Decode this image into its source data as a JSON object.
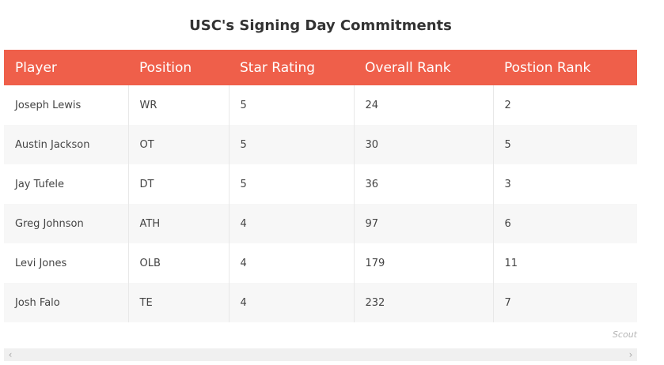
{
  "title": "USC's Signing Day Commitments",
  "table": {
    "headers": [
      "Player",
      "Position",
      "Star Rating",
      "Overall Rank",
      "Postion Rank"
    ],
    "rows": [
      [
        "Joseph Lewis",
        "WR",
        "5",
        "24",
        "2"
      ],
      [
        "Austin Jackson",
        "OT",
        "5",
        "30",
        "5"
      ],
      [
        "Jay Tufele",
        "DT",
        "5",
        "36",
        "3"
      ],
      [
        "Greg Johnson",
        "ATH",
        "4",
        "97",
        "6"
      ],
      [
        "Levi Jones",
        "OLB",
        "4",
        "179",
        "11"
      ],
      [
        "Josh Falo",
        "TE",
        "4",
        "232",
        "7"
      ]
    ]
  },
  "source": "Scout",
  "scrollbar": {
    "left_arrow": "‹",
    "right_arrow": "›"
  },
  "colors": {
    "header_bg": "#ef5f4a",
    "header_text": "#ffffff",
    "stripe": "#f7f7f7"
  }
}
